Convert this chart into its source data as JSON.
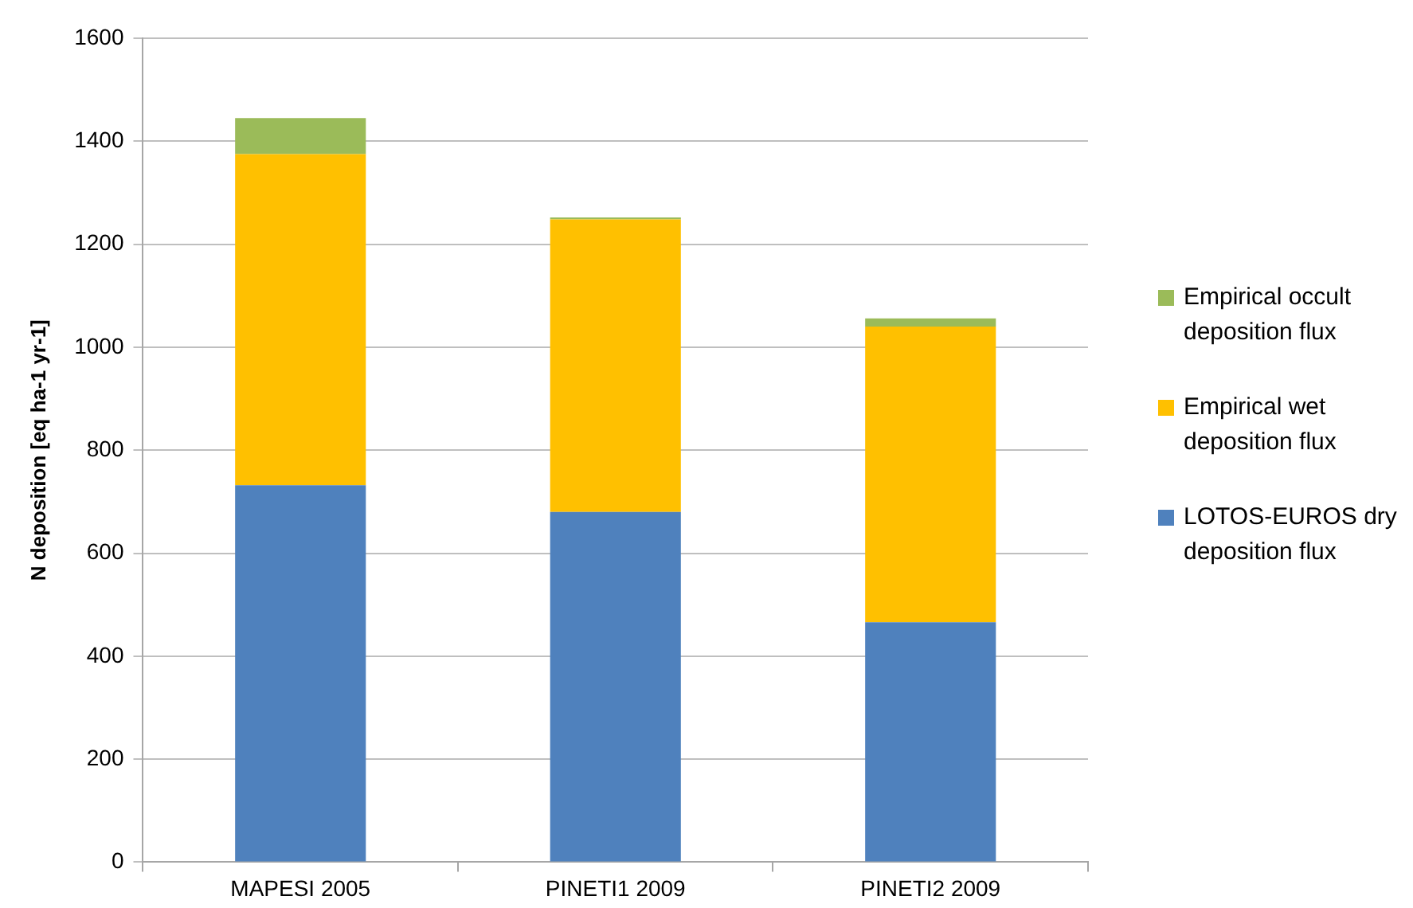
{
  "chart_data": {
    "type": "bar",
    "ylabel": "N deposition [eq ha-1 yr-1]",
    "categories": [
      "MAPESI 2005",
      "PINETI1 2009",
      "PINETI2 2009"
    ],
    "series": [
      {
        "name": "LOTOS-EUROS dry deposition flux",
        "color": "#4f81bd",
        "values": [
          732,
          680,
          466
        ]
      },
      {
        "name": "Empirical wet deposition flux",
        "color": "#ffc000",
        "values": [
          643,
          568,
          574
        ]
      },
      {
        "name": "Empirical occult deposition flux",
        "color": "#9bbb59",
        "values": [
          70,
          4,
          16
        ]
      }
    ],
    "stacked": true,
    "ylim": [
      0,
      1600
    ],
    "yticks": [
      0,
      200,
      400,
      600,
      800,
      1000,
      1200,
      1400,
      1600
    ],
    "grid": "y",
    "legend": "right"
  }
}
